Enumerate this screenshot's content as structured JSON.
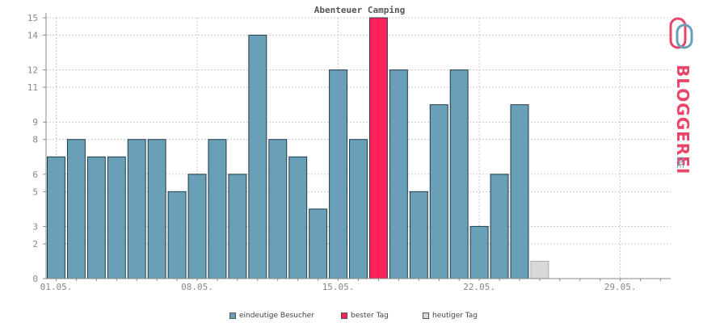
{
  "chart_data": {
    "type": "bar",
    "title": "Abenteuer Camping",
    "xlabel": "",
    "ylabel": "",
    "ylim": [
      0,
      15
    ],
    "yticks": [
      0,
      2,
      3,
      5,
      6,
      8,
      9,
      11,
      12,
      14,
      15
    ],
    "xticks": [
      {
        "day": 1,
        "label": "01.05."
      },
      {
        "day": 8,
        "label": "08.05."
      },
      {
        "day": 15,
        "label": "15.05."
      },
      {
        "day": 22,
        "label": "22.05."
      },
      {
        "day": 29,
        "label": "29.05."
      }
    ],
    "days": 31,
    "series": [
      {
        "name": "eindeutige Besucher",
        "days": [
          1,
          2,
          3,
          4,
          5,
          6,
          7,
          8,
          9,
          10,
          11,
          12,
          13,
          14,
          15,
          16,
          17,
          18,
          19,
          20,
          21,
          22,
          23,
          24
        ],
        "values": [
          7,
          8,
          7,
          7,
          8,
          8,
          5,
          6,
          8,
          6,
          14,
          8,
          7,
          4,
          12,
          8,
          15,
          12,
          5,
          10,
          12,
          3,
          6,
          10
        ]
      }
    ],
    "best_day": {
      "day": 17,
      "value": 15
    },
    "today": {
      "day": 25,
      "value": 1
    },
    "grid": true,
    "legend_position": "bottom"
  },
  "legend": [
    {
      "label": "eindeutige Besucher",
      "color": "#6a9fb8"
    },
    {
      "label": "bester Tag",
      "color": "#ff2258"
    },
    {
      "label": "heutiger Tag",
      "color": "#d8d8d8"
    }
  ],
  "colors": {
    "bar": "#6a9fb8",
    "best": "#ff2258",
    "today": "#d8d8d8",
    "grid": "#c8c8c8",
    "axis": "#888888",
    "text": "#888888"
  },
  "logo": {
    "text": "BLOGGEREI",
    "suffix": ".DE"
  }
}
